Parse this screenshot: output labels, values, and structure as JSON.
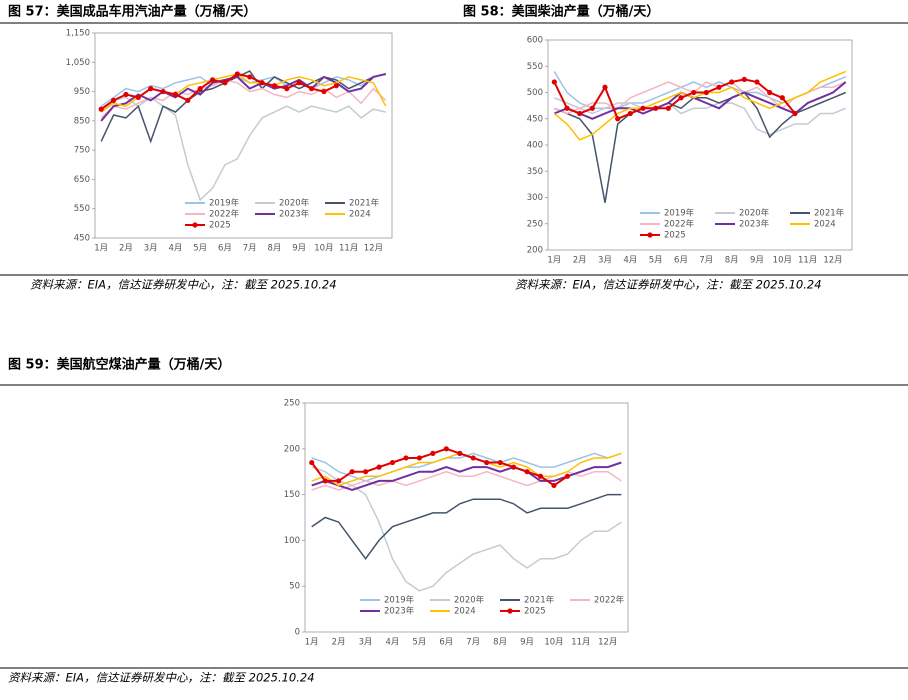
{
  "chart_data": [
    {
      "type": "line",
      "title": "图 57：美国成品车用汽油产量（万桶/天）",
      "source": "资料来源：EIA，信达证券研发中心，注：截至 2025.10.24",
      "categories": [
        "1月",
        null,
        "2月",
        null,
        "3月",
        null,
        "4月",
        null,
        "5月",
        null,
        "6月",
        null,
        "7月",
        null,
        "8月",
        null,
        "9月",
        null,
        "10月",
        null,
        "11月",
        null,
        "12月",
        null
      ],
      "ylim": [
        450,
        1150
      ],
      "yticks": [
        450,
        550,
        650,
        750,
        850,
        950,
        {
          "value": 1050,
          "label": "1,050"
        },
        {
          "value": 1150,
          "label": "1,150"
        }
      ],
      "series": [
        {
          "name": "2019年",
          "color": "#9dc3e6",
          "values": [
            900,
            930,
            960,
            950,
            970,
            960,
            980,
            990,
            1000,
            970,
            990,
            1000,
            980,
            990,
            1000,
            970,
            990,
            960,
            980,
            1000,
            990,
            970,
            1000,
            1010
          ]
        },
        {
          "name": "2020年",
          "color": "#c5cbd3",
          "values": [
            880,
            920,
            930,
            900,
            930,
            900,
            870,
            700,
            580,
            620,
            700,
            720,
            800,
            860,
            880,
            900,
            880,
            900,
            890,
            880,
            900,
            860,
            890,
            880
          ]
        },
        {
          "name": "2021年",
          "color": "#44546a",
          "values": [
            780,
            870,
            860,
            900,
            780,
            900,
            880,
            920,
            950,
            960,
            980,
            1000,
            1020,
            960,
            1000,
            980,
            960,
            980,
            1000,
            990,
            960,
            980,
            1000,
            1010
          ]
        },
        {
          "name": "2022年",
          "color": "#f4b6c2",
          "values": [
            860,
            900,
            890,
            910,
            930,
            920,
            950,
            940,
            960,
            970,
            990,
            980,
            950,
            960,
            940,
            930,
            950,
            940,
            960,
            930,
            950,
            910,
            960,
            920
          ]
        },
        {
          "name": "2023年",
          "color": "#7030a0",
          "values": [
            850,
            900,
            910,
            940,
            920,
            950,
            930,
            960,
            940,
            980,
            990,
            1000,
            960,
            980,
            960,
            970,
            990,
            960,
            1000,
            980,
            950,
            960,
            1000,
            1010
          ]
        },
        {
          "name": "2024",
          "color": "#ffc000",
          "values": [
            880,
            910,
            900,
            930,
            960,
            950,
            940,
            970,
            980,
            990,
            1000,
            1010,
            980,
            980,
            970,
            990,
            1000,
            990,
            970,
            980,
            1000,
            990,
            980,
            900
          ]
        },
        {
          "name": "2025",
          "color": "#e00000",
          "values": [
            890,
            920,
            940,
            930,
            960,
            950,
            940,
            920,
            960,
            990,
            980,
            1010,
            1000,
            980,
            970,
            960,
            980,
            960,
            950,
            970,
            null,
            null,
            null,
            null
          ]
        }
      ]
    },
    {
      "type": "line",
      "title": "图 58：美国柴油产量（万桶/天）",
      "source": "资料来源：EIA，信达证券研发中心，注：截至 2025.10.24",
      "categories": [
        "1月",
        null,
        "2月",
        null,
        "3月",
        null,
        "4月",
        null,
        "5月",
        null,
        "6月",
        null,
        "7月",
        null,
        "8月",
        null,
        "9月",
        null,
        "10月",
        null,
        "11月",
        null,
        "12月",
        null
      ],
      "ylim": [
        200,
        600
      ],
      "yticks": [
        200,
        250,
        300,
        350,
        400,
        450,
        500,
        550,
        600
      ],
      "series": [
        {
          "name": "2019年",
          "color": "#9dc3e6",
          "values": [
            540,
            500,
            480,
            470,
            470,
            470,
            480,
            480,
            490,
            500,
            510,
            520,
            510,
            520,
            510,
            500,
            500,
            490,
            480,
            490,
            500,
            510,
            520,
            530
          ]
        },
        {
          "name": "2020年",
          "color": "#c5cbd3",
          "values": [
            490,
            480,
            470,
            460,
            470,
            480,
            480,
            470,
            470,
            480,
            460,
            470,
            470,
            480,
            480,
            470,
            430,
            420,
            430,
            440,
            440,
            460,
            460,
            470
          ]
        },
        {
          "name": "2021年",
          "color": "#44546a",
          "values": [
            470,
            460,
            450,
            420,
            290,
            440,
            460,
            470,
            470,
            480,
            470,
            490,
            490,
            480,
            490,
            500,
            470,
            415,
            440,
            460,
            470,
            480,
            490,
            500
          ]
        },
        {
          "name": "2022年",
          "color": "#f4b6c2",
          "values": [
            470,
            460,
            470,
            480,
            480,
            470,
            490,
            500,
            510,
            520,
            510,
            500,
            520,
            510,
            520,
            500,
            510,
            490,
            470,
            490,
            500,
            510,
            510,
            520
          ]
        },
        {
          "name": "2023年",
          "color": "#7030a0",
          "values": [
            460,
            470,
            460,
            450,
            460,
            470,
            470,
            460,
            470,
            480,
            500,
            490,
            480,
            470,
            490,
            500,
            490,
            480,
            470,
            460,
            480,
            490,
            500,
            520
          ]
        },
        {
          "name": "2024",
          "color": "#ffc000",
          "values": [
            460,
            440,
            410,
            420,
            440,
            460,
            470,
            470,
            480,
            490,
            500,
            490,
            500,
            500,
            510,
            490,
            480,
            470,
            480,
            490,
            500,
            520,
            530,
            540
          ]
        },
        {
          "name": "2025",
          "color": "#e00000",
          "values": [
            520,
            470,
            460,
            470,
            510,
            450,
            460,
            470,
            470,
            470,
            490,
            500,
            500,
            510,
            520,
            525,
            520,
            500,
            490,
            460,
            null,
            null,
            null,
            null
          ]
        }
      ]
    },
    {
      "type": "line",
      "title": "图 59：美国航空煤油产量（万桶/天）",
      "source": "资料来源：EIA，信达证券研发中心，注：截至 2025.10.24",
      "categories": [
        "1月",
        null,
        "2月",
        null,
        "3月",
        null,
        "4月",
        null,
        "5月",
        null,
        "6月",
        null,
        "7月",
        null,
        "8月",
        null,
        "9月",
        null,
        "10月",
        null,
        "11月",
        null,
        "12月",
        null
      ],
      "ylim": [
        0,
        250
      ],
      "yticks": [
        0,
        50,
        100,
        150,
        200,
        250
      ],
      "series": [
        {
          "name": "2019年",
          "color": "#9dc3e6",
          "values": [
            190,
            185,
            175,
            170,
            165,
            170,
            175,
            180,
            180,
            185,
            190,
            190,
            195,
            190,
            185,
            190,
            185,
            180,
            180,
            185,
            190,
            195,
            190,
            195
          ]
        },
        {
          "name": "2020年",
          "color": "#c5cbd3",
          "values": [
            180,
            175,
            165,
            160,
            150,
            120,
            80,
            55,
            45,
            50,
            65,
            75,
            85,
            90,
            95,
            80,
            70,
            80,
            80,
            85,
            100,
            110,
            110,
            120
          ]
        },
        {
          "name": "2021年",
          "color": "#44546a",
          "values": [
            115,
            125,
            120,
            100,
            80,
            100,
            115,
            120,
            125,
            130,
            130,
            140,
            145,
            145,
            145,
            140,
            130,
            135,
            135,
            135,
            140,
            145,
            150,
            150
          ]
        },
        {
          "name": "2022年",
          "color": "#f4b6c2",
          "values": [
            155,
            160,
            155,
            160,
            165,
            160,
            165,
            160,
            165,
            170,
            175,
            170,
            170,
            175,
            170,
            165,
            160,
            165,
            170,
            175,
            170,
            175,
            175,
            165
          ]
        },
        {
          "name": "2023年",
          "color": "#7030a0",
          "values": [
            160,
            165,
            160,
            155,
            160,
            165,
            165,
            170,
            175,
            175,
            180,
            175,
            180,
            180,
            175,
            180,
            175,
            165,
            165,
            170,
            175,
            180,
            180,
            185
          ]
        },
        {
          "name": "2024",
          "color": "#ffc000",
          "values": [
            165,
            170,
            160,
            165,
            170,
            170,
            175,
            180,
            185,
            185,
            190,
            195,
            190,
            185,
            180,
            185,
            180,
            170,
            170,
            175,
            185,
            190,
            190,
            195
          ]
        },
        {
          "name": "2025",
          "color": "#e00000",
          "values": [
            185,
            165,
            165,
            175,
            175,
            180,
            185,
            190,
            190,
            195,
            200,
            195,
            190,
            185,
            185,
            180,
            175,
            170,
            160,
            170,
            null,
            null,
            null,
            null
          ]
        }
      ]
    }
  ]
}
